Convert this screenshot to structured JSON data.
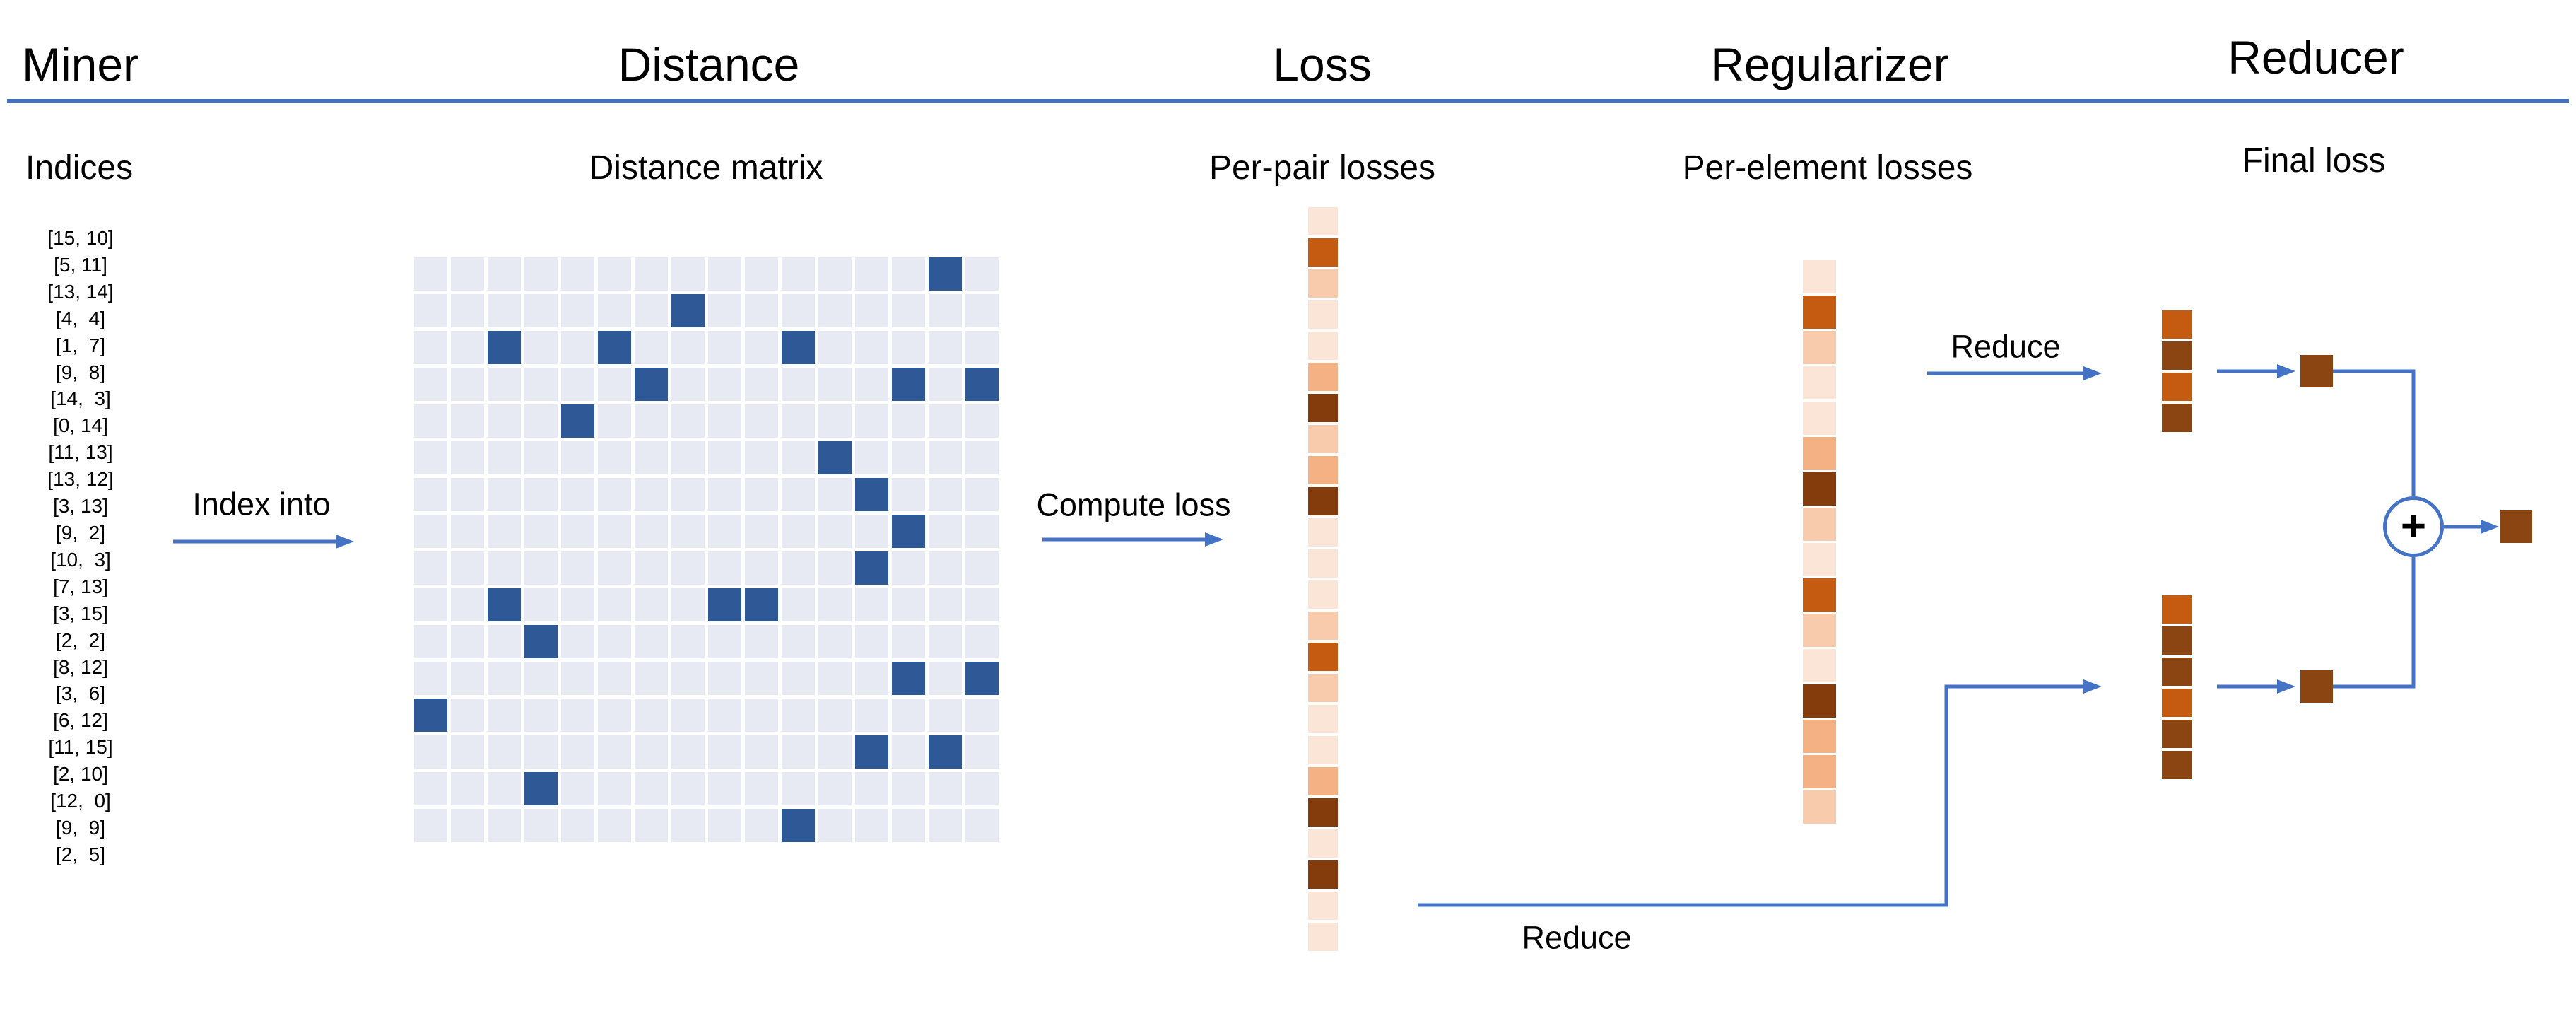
{
  "palette": {
    "blue_line": "#4472C4",
    "matrix_light": "#E8EAF3",
    "matrix_dark": "#2F5897",
    "vlight": "#FBE5D6",
    "light": "#F8CBAD",
    "medium": "#F4B183",
    "orange": "#C55A11",
    "dark": "#843C0C",
    "brown": "#8B4513"
  },
  "header": {
    "miner": "Miner",
    "distance": "Distance",
    "loss": "Loss",
    "regularizer": "Regularizer",
    "reducer": "Reducer"
  },
  "sublabels": {
    "indices": "Indices",
    "distance_matrix": "Distance matrix",
    "per_pair": "Per-pair losses",
    "per_element": "Per-element losses",
    "final_loss": "Final loss"
  },
  "arrows": {
    "index_into": "Index into",
    "compute_loss": "Compute loss",
    "reduce_top": "Reduce",
    "reduce_bottom": "Reduce"
  },
  "miner": {
    "pairs": [
      "[15, 10]",
      "[5, 11]",
      "[13, 14]",
      "[4,  4]",
      "[1,  7]",
      "[9,  8]",
      "[14,  3]",
      "[0, 14]",
      "[11, 13]",
      "[13, 12]",
      "[3, 13]",
      "[9,  2]",
      "[10,  3]",
      "[7, 13]",
      "[3, 15]",
      "[2,  2]",
      "[8, 12]",
      "[3,  6]",
      "[6, 12]",
      "[11, 15]",
      "[2, 10]",
      "[12,  0]",
      "[9,  9]",
      "[2,  5]"
    ]
  },
  "distance": {
    "matrix": {
      "rows": 16,
      "cols": 16,
      "highlighted": [
        [
          0,
          14
        ],
        [
          1,
          7
        ],
        [
          2,
          2
        ],
        [
          2,
          5
        ],
        [
          2,
          10
        ],
        [
          3,
          6
        ],
        [
          3,
          13
        ],
        [
          3,
          15
        ],
        [
          4,
          4
        ],
        [
          5,
          11
        ],
        [
          6,
          12
        ],
        [
          7,
          13
        ],
        [
          8,
          12
        ],
        [
          9,
          2
        ],
        [
          9,
          8
        ],
        [
          9,
          9
        ],
        [
          10,
          3
        ],
        [
          11,
          13
        ],
        [
          11,
          15
        ],
        [
          12,
          0
        ],
        [
          13,
          12
        ],
        [
          13,
          14
        ],
        [
          14,
          3
        ],
        [
          15,
          10
        ]
      ]
    }
  },
  "loss": {
    "per_pair_cells": [
      "vlight",
      "orange",
      "light",
      "vlight",
      "vlight",
      "medium",
      "dark",
      "light",
      "medium",
      "dark",
      "vlight",
      "vlight",
      "vlight",
      "light",
      "orange",
      "light",
      "vlight",
      "vlight",
      "medium",
      "dark",
      "vlight",
      "dark",
      "vlight",
      "vlight"
    ]
  },
  "regularizer": {
    "per_element_cells": [
      "vlight",
      "orange",
      "light",
      "vlight",
      "vlight",
      "medium",
      "dark",
      "light",
      "vlight",
      "orange",
      "light",
      "vlight",
      "dark",
      "medium",
      "medium",
      "light"
    ]
  },
  "reducer": {
    "top_strip": [
      "orange",
      "brown",
      "orange",
      "brown"
    ],
    "bottom_strip": [
      "orange",
      "brown",
      "brown",
      "orange",
      "brown",
      "brown"
    ],
    "sum_symbol": "+"
  }
}
